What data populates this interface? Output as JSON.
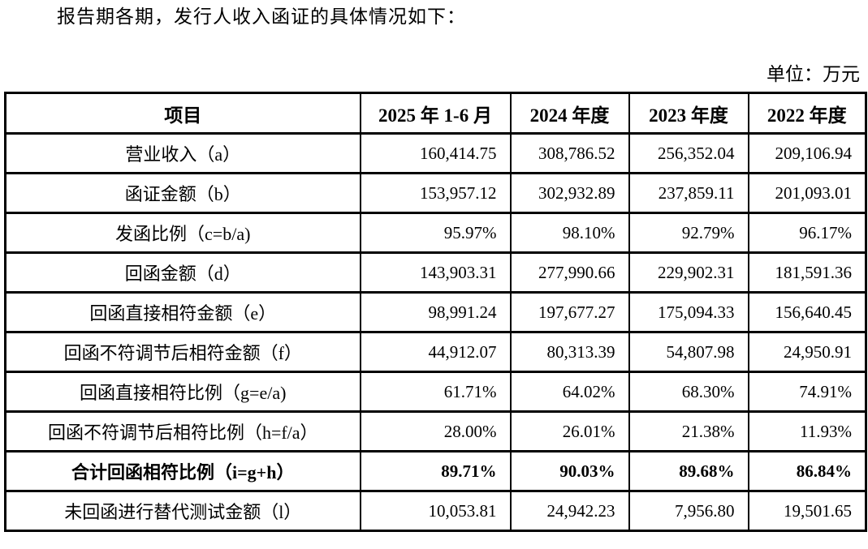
{
  "page": {
    "intro": "报告期各期，发行人收入函证的具体情况如下：",
    "unit_label": "单位：万元"
  },
  "table": {
    "columns": [
      "项目",
      "2025 年 1-6 月",
      "2024 年度",
      "2023 年度",
      "2022 年度"
    ],
    "rows": [
      {
        "label": "营业收入（a）",
        "values": [
          "160,414.75",
          "308,786.52",
          "256,352.04",
          "209,106.94"
        ],
        "bold": false
      },
      {
        "label": "函证金额（b）",
        "values": [
          "153,957.12",
          "302,932.89",
          "237,859.11",
          "201,093.01"
        ],
        "bold": false
      },
      {
        "label": "发函比例（c=b/a)",
        "values": [
          "95.97%",
          "98.10%",
          "92.79%",
          "96.17%"
        ],
        "bold": false
      },
      {
        "label": "回函金额（d）",
        "values": [
          "143,903.31",
          "277,990.66",
          "229,902.31",
          "181,591.36"
        ],
        "bold": false
      },
      {
        "label": "回函直接相符金额（e）",
        "values": [
          "98,991.24",
          "197,677.27",
          "175,094.33",
          "156,640.45"
        ],
        "bold": false
      },
      {
        "label": "回函不符调节后相符金额（f）",
        "values": [
          "44,912.07",
          "80,313.39",
          "54,807.98",
          "24,950.91"
        ],
        "bold": false
      },
      {
        "label": "回函直接相符比例（g=e/a)",
        "values": [
          "61.71%",
          "64.02%",
          "68.30%",
          "74.91%"
        ],
        "bold": false
      },
      {
        "label": "回函不符调节后相符比例（h=f/a）",
        "values": [
          "28.00%",
          "26.01%",
          "21.38%",
          "11.93%"
        ],
        "bold": false
      },
      {
        "label": "合计回函相符比例（i=g+h）",
        "values": [
          "89.71%",
          "90.03%",
          "89.68%",
          "86.84%"
        ],
        "bold": true
      },
      {
        "label": "未回函进行替代测试金额（l）",
        "values": [
          "10,053.81",
          "24,942.23",
          "7,956.80",
          "19,501.65"
        ],
        "bold": false
      }
    ]
  },
  "colors": {
    "text": "#000000",
    "border": "#000000",
    "background": "#ffffff"
  }
}
